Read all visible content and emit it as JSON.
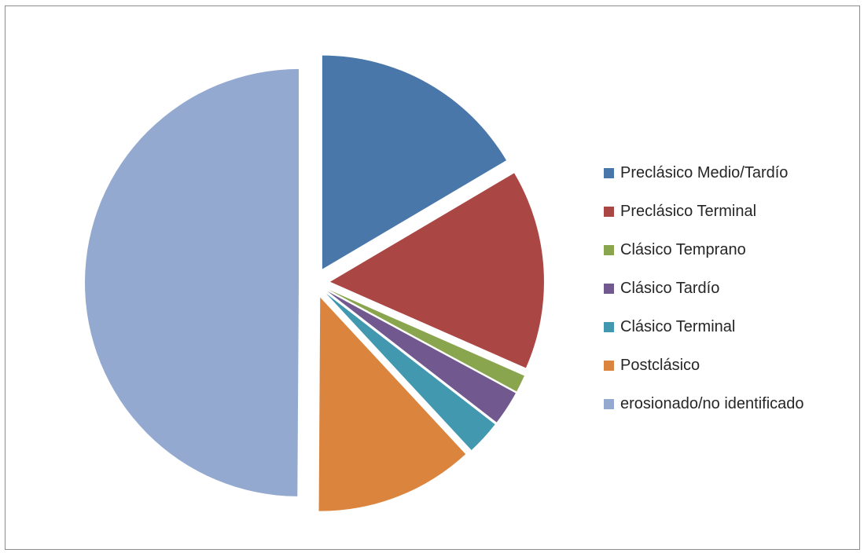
{
  "chart_data": {
    "type": "pie",
    "title": "",
    "categories": [
      "Preclásico Medio/Tardío",
      "Preclásico Terminal",
      "Clásico Temprano",
      "Clásico Tardío",
      "Clásico Terminal",
      "Postclásico",
      "erosionado/no identificado"
    ],
    "values": [
      16.5,
      15.1,
      1.3,
      2.6,
      2.6,
      12.0,
      49.9
    ],
    "colors": [
      "#4a77aa",
      "#aa4644",
      "#89a54e",
      "#71588f",
      "#4198af",
      "#db843d",
      "#93a9cf"
    ],
    "exploded": true,
    "start_angle_deg": 0,
    "direction": "clockwise",
    "legend_position": "right"
  }
}
